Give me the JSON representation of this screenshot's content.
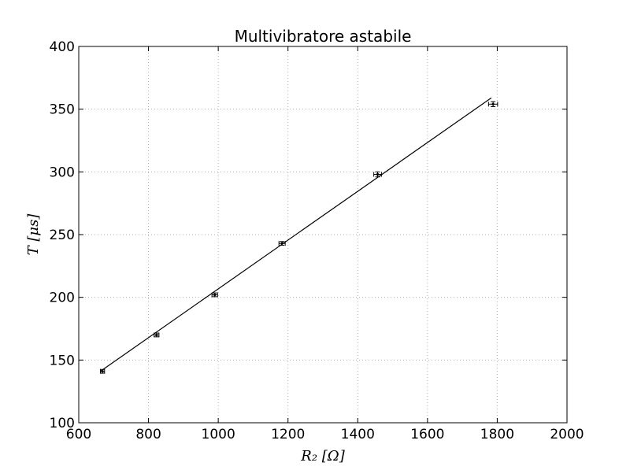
{
  "chart_data": {
    "type": "scatter",
    "title": "Multivibratore astabile",
    "xlabel": "R₂ [Ω]",
    "ylabel": "T [μs]",
    "xlim": [
      600,
      2000
    ],
    "ylim": [
      100,
      400
    ],
    "xticks": [
      600,
      800,
      1000,
      1200,
      1400,
      1600,
      1800,
      2000
    ],
    "yticks": [
      100,
      150,
      200,
      250,
      300,
      350,
      400
    ],
    "grid": true,
    "points": [
      {
        "x": 668,
        "y": 141,
        "xerr": 6,
        "yerr": 1.5
      },
      {
        "x": 823,
        "y": 170,
        "xerr": 7,
        "yerr": 1.5
      },
      {
        "x": 990,
        "y": 202,
        "xerr": 8,
        "yerr": 1.5
      },
      {
        "x": 1183,
        "y": 243,
        "xerr": 9,
        "yerr": 1.5
      },
      {
        "x": 1457,
        "y": 298,
        "xerr": 11,
        "yerr": 2
      },
      {
        "x": 1788,
        "y": 354,
        "xerr": 13,
        "yerr": 2
      }
    ],
    "fit_line": {
      "x": [
        662,
        1783
      ],
      "y": [
        141,
        359
      ]
    },
    "colors": {
      "points": "#000000",
      "line": "#000000",
      "grid": "#b0b0b0"
    }
  }
}
